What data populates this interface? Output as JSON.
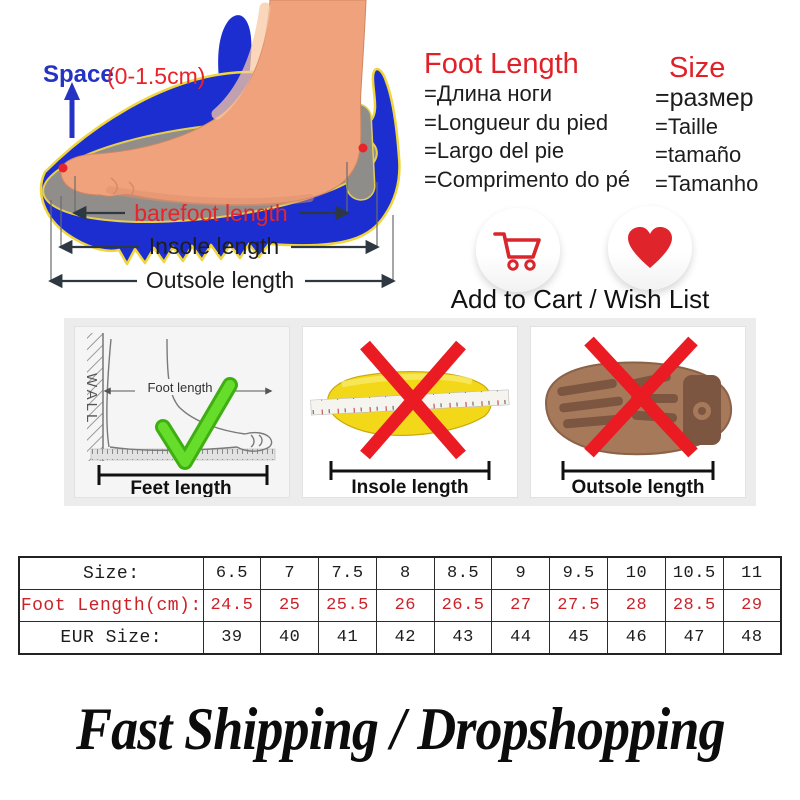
{
  "hero": {
    "space_label": "Space",
    "space_range": "(0-1.5cm)",
    "barefoot_label": "barefoot length",
    "insole_label": "Insole length",
    "outsole_label": "Outsole length"
  },
  "foot_length_block": {
    "title": "Foot Length",
    "translations": [
      "=Длина ноги",
      "=Longueur du pied",
      "=Largo del pie",
      "=Comprimento do pé"
    ]
  },
  "size_block": {
    "title": "Size",
    "translations": [
      "=размер",
      "=Taille",
      "=tamaño",
      "=Tamanho"
    ]
  },
  "actions": {
    "label": "Add to Cart / Wish List"
  },
  "method_cards": [
    {
      "label": "Feet length",
      "wall_label": "WALL",
      "inner_label": "Foot length",
      "status": "correct"
    },
    {
      "label": "Insole length",
      "status": "wrong"
    },
    {
      "label": "Outsole length",
      "status": "wrong"
    }
  ],
  "size_table": {
    "rows": [
      {
        "label": "Size:",
        "color": "#1c1c1c",
        "values": [
          "6.5",
          "7",
          "7.5",
          "8",
          "8.5",
          "9",
          "9.5",
          "10",
          "10.5",
          "11"
        ]
      },
      {
        "label": "Foot Length(cm):",
        "color": "#cc2127",
        "values": [
          "24.5",
          "25",
          "25.5",
          "26",
          "26.5",
          "27",
          "27.5",
          "28",
          "28.5",
          "29"
        ]
      },
      {
        "label": "EUR Size:",
        "color": "#1c1c1c",
        "values": [
          "39",
          "40",
          "41",
          "42",
          "43",
          "44",
          "45",
          "46",
          "47",
          "48"
        ]
      }
    ]
  },
  "banner": {
    "text": "Fast Shipping / Dropshopping"
  },
  "colors": {
    "accent_red": "#e02128",
    "shoe_blue": "#1c2ed0",
    "check_green": "#5fd121",
    "insole_yellow": "#f2d818",
    "outsole_brown": "#a6795a"
  }
}
